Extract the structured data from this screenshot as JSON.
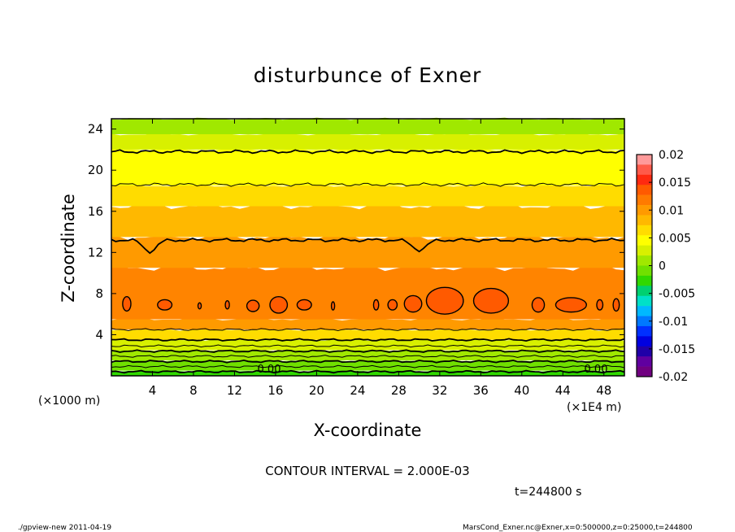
{
  "chart_data": {
    "type": "heatmap",
    "title": "disturbunce of Exner",
    "xlabel": "X-coordinate",
    "ylabel": "Z-coordinate",
    "x_unit_left": "(×1000 m)",
    "x_unit_right": "(×1E4 m)",
    "x_ticks": [
      "4",
      "8",
      "12",
      "16",
      "20",
      "24",
      "28",
      "32",
      "36",
      "40",
      "44",
      "48"
    ],
    "y_ticks": [
      "4",
      "8",
      "12",
      "16",
      "20",
      "24"
    ],
    "xlim": [
      0,
      50
    ],
    "ylim": [
      0,
      25
    ],
    "contour_labels": [
      "0.00",
      "0.00"
    ],
    "contour_interval_text": "CONTOUR INTERVAL = 2.000E-03",
    "time_text": "t=244800 s",
    "colorbar": {
      "ticks": [
        "0.02",
        "0.015",
        "0.01",
        "0.005",
        "0",
        "-0.005",
        "-0.01",
        "-0.015",
        "-0.02"
      ],
      "colors": [
        "#ff9a9a",
        "#ff5a4a",
        "#ff2a10",
        "#ff5a00",
        "#ff7a00",
        "#ff9a00",
        "#ffb800",
        "#ffdc00",
        "#ffff00",
        "#d8f000",
        "#a0e800",
        "#70e000",
        "#30d800",
        "#00d070",
        "#00e0c8",
        "#00b8ff",
        "#0078ff",
        "#0030ff",
        "#0000e0",
        "#2000a8",
        "#6000a0",
        "#700080"
      ]
    },
    "bands": [
      {
        "z": [
          0.0,
          0.5
        ],
        "color": "#30d800"
      },
      {
        "z": [
          0.5,
          1.5
        ],
        "color": "#70e000"
      },
      {
        "z": [
          1.5,
          2.5
        ],
        "color": "#a0e800"
      },
      {
        "z": [
          2.5,
          3.5
        ],
        "color": "#d8f000"
      },
      {
        "z": [
          3.5,
          4.5
        ],
        "color": "#ffdc00"
      },
      {
        "z": [
          4.5,
          5.5
        ],
        "color": "#ff9a00"
      },
      {
        "z": [
          5.5,
          10.5
        ],
        "color": "#ff8400"
      },
      {
        "z": [
          10.5,
          13.5
        ],
        "color": "#ff9a00"
      },
      {
        "z": [
          13.5,
          16.5
        ],
        "color": "#ffb800"
      },
      {
        "z": [
          16.5,
          18.5
        ],
        "color": "#ffdc00"
      },
      {
        "z": [
          18.5,
          22.0
        ],
        "color": "#ffff00"
      },
      {
        "z": [
          22.0,
          23.5
        ],
        "color": "#d8f000"
      },
      {
        "z": [
          23.5,
          25.0
        ],
        "color": "#a0e800"
      }
    ],
    "contour_z": [
      0.4,
      0.9,
      1.4,
      1.9,
      2.4,
      2.9,
      3.5,
      4.5,
      13.2,
      18.6,
      21.8
    ],
    "hot_spots": [
      {
        "x": 1.5,
        "z": 7.0,
        "w": 0.8,
        "h": 1.4
      },
      {
        "x": 5.2,
        "z": 6.9,
        "w": 1.4,
        "h": 1.0
      },
      {
        "x": 8.6,
        "z": 6.8,
        "w": 0.3,
        "h": 0.6
      },
      {
        "x": 11.3,
        "z": 6.9,
        "w": 0.4,
        "h": 0.8
      },
      {
        "x": 13.8,
        "z": 6.8,
        "w": 1.2,
        "h": 1.1
      },
      {
        "x": 16.3,
        "z": 6.9,
        "w": 1.7,
        "h": 1.6
      },
      {
        "x": 18.8,
        "z": 6.9,
        "w": 1.4,
        "h": 1.0
      },
      {
        "x": 21.6,
        "z": 6.8,
        "w": 0.3,
        "h": 0.8
      },
      {
        "x": 25.8,
        "z": 6.9,
        "w": 0.5,
        "h": 1.0
      },
      {
        "x": 27.4,
        "z": 6.9,
        "w": 0.9,
        "h": 1.0
      },
      {
        "x": 29.4,
        "z": 7.0,
        "w": 1.7,
        "h": 1.6
      },
      {
        "x": 32.5,
        "z": 7.3,
        "w": 3.6,
        "h": 2.6
      },
      {
        "x": 37.0,
        "z": 7.3,
        "w": 3.4,
        "h": 2.4
      },
      {
        "x": 41.6,
        "z": 6.9,
        "w": 1.2,
        "h": 1.4
      },
      {
        "x": 44.8,
        "z": 6.9,
        "w": 3.0,
        "h": 1.4
      },
      {
        "x": 47.6,
        "z": 6.9,
        "w": 0.6,
        "h": 1.0
      },
      {
        "x": 49.2,
        "z": 6.9,
        "w": 0.6,
        "h": 1.2
      }
    ]
  },
  "footer": {
    "left": "./gpview-new   2011-04-19",
    "right": "MarsCond_Exner.nc@Exner,x=0:500000,z=0:25000,t=244800"
  }
}
